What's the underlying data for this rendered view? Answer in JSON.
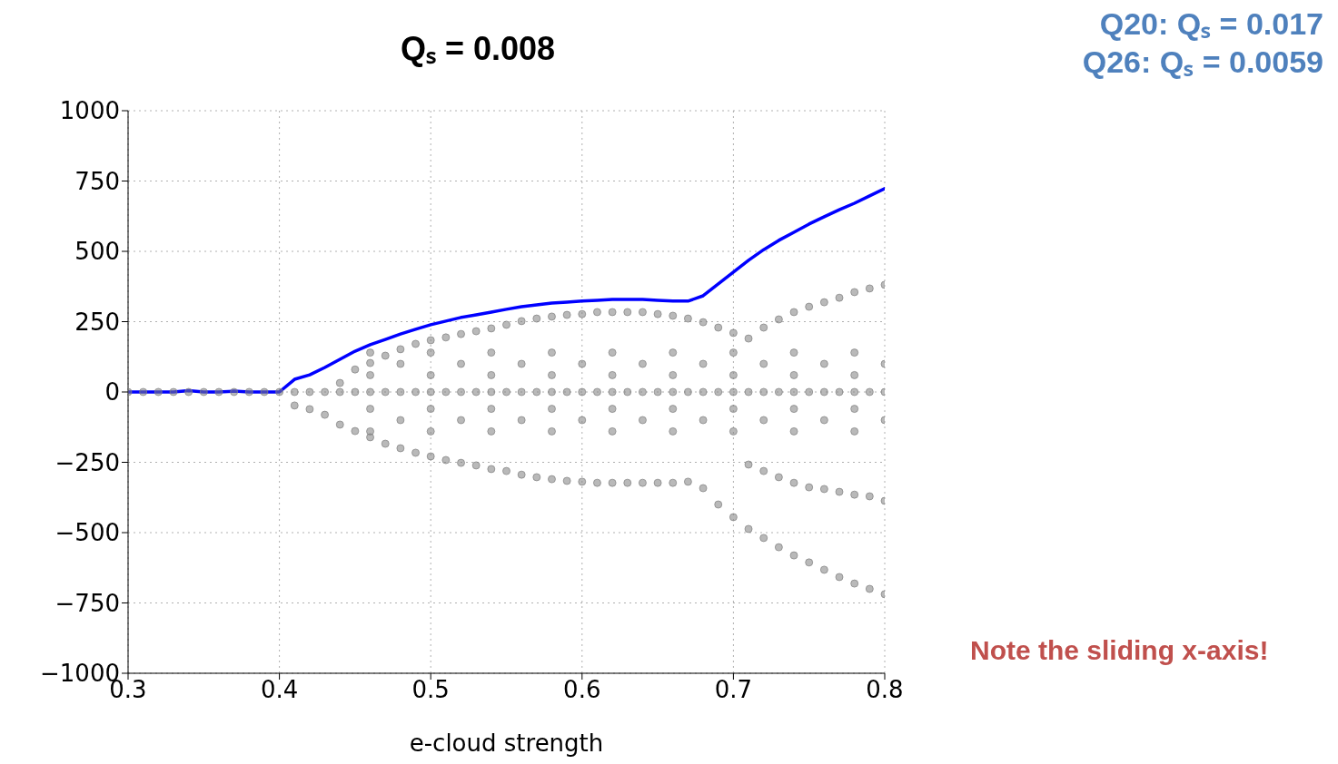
{
  "chart_data": {
    "type": "scatter",
    "title": "Qₛ = 0.008",
    "xlabel": "e-cloud strength",
    "xlim": [
      0.3,
      0.8
    ],
    "xticks": [
      0.3,
      0.4,
      0.5,
      0.6,
      0.7,
      0.8
    ],
    "ylim": [
      -1000,
      1000
    ],
    "yticks": [
      -1000,
      -750,
      -500,
      -250,
      0,
      250,
      500,
      750,
      1000
    ],
    "grid": true,
    "line_style": "dotted",
    "annotations": [
      "Q20: Qₛ = 0.017",
      "Q26: Qₛ = 0.0059",
      "Note the sliding x-axis!"
    ],
    "series": [
      {
        "color": "#808080",
        "marker": "circle",
        "x": [
          0.3,
          0.31,
          0.32,
          0.33,
          0.34,
          0.35,
          0.36,
          0.37,
          0.38,
          0.39,
          0.4,
          0.41,
          0.42,
          0.43,
          0.44,
          0.45,
          0.46,
          0.47,
          0.48,
          0.49,
          0.5,
          0.51,
          0.52,
          0.53,
          0.54,
          0.55,
          0.56,
          0.57,
          0.58,
          0.59,
          0.6,
          0.61,
          0.62,
          0.63,
          0.64,
          0.65,
          0.66,
          0.67,
          0.68,
          0.69,
          0.7,
          0.71,
          0.72,
          0.73,
          0.74,
          0.75,
          0.76,
          0.77,
          0.78,
          0.79,
          0.8,
          0.44,
          0.45,
          0.46,
          0.47,
          0.48,
          0.49,
          0.5,
          0.51,
          0.52,
          0.53,
          0.54,
          0.55,
          0.56,
          0.57,
          0.58,
          0.59,
          0.6,
          0.61,
          0.62,
          0.63,
          0.64,
          0.65,
          0.66,
          0.67,
          0.68,
          0.69,
          0.7,
          0.71,
          0.72,
          0.73,
          0.74,
          0.75,
          0.76,
          0.77,
          0.78,
          0.79,
          0.8,
          0.41,
          0.42,
          0.43,
          0.44,
          0.45,
          0.46,
          0.47,
          0.48,
          0.49,
          0.5,
          0.51,
          0.52,
          0.53,
          0.54,
          0.55,
          0.56,
          0.57,
          0.58,
          0.59,
          0.6,
          0.61,
          0.62,
          0.63,
          0.64,
          0.65,
          0.66,
          0.67,
          0.68,
          0.69,
          0.7,
          0.71,
          0.72,
          0.73,
          0.74,
          0.75,
          0.76,
          0.77,
          0.78,
          0.79,
          0.8,
          0.71,
          0.72,
          0.73,
          0.74,
          0.75,
          0.76,
          0.77,
          0.78,
          0.79,
          0.8,
          0.46,
          0.46,
          0.46,
          0.46,
          0.5,
          0.5,
          0.5,
          0.5,
          0.54,
          0.54,
          0.54,
          0.54,
          0.58,
          0.58,
          0.58,
          0.58,
          0.62,
          0.62,
          0.62,
          0.62,
          0.66,
          0.66,
          0.66,
          0.66,
          0.7,
          0.7,
          0.7,
          0.7,
          0.74,
          0.74,
          0.74,
          0.74,
          0.78,
          0.78,
          0.78,
          0.78,
          0.48,
          0.48,
          0.52,
          0.52,
          0.56,
          0.56,
          0.6,
          0.6,
          0.64,
          0.64,
          0.68,
          0.68,
          0.72,
          0.72,
          0.76,
          0.76,
          0.8,
          0.8
        ],
        "values": [
          0,
          0,
          0,
          0,
          0,
          0,
          0,
          0,
          0,
          0,
          0,
          0,
          0,
          0,
          0,
          0,
          0,
          0,
          0,
          0,
          0,
          0,
          0,
          0,
          0,
          0,
          0,
          0,
          0,
          0,
          0,
          0,
          0,
          0,
          0,
          0,
          0,
          0,
          0,
          0,
          0,
          0,
          0,
          0,
          0,
          0,
          0,
          0,
          0,
          0,
          0,
          32,
          80,
          103,
          129,
          152,
          171,
          184,
          194,
          206,
          216,
          226,
          239,
          252,
          261,
          268,
          274,
          277,
          284,
          284,
          284,
          284,
          277,
          271,
          261,
          248,
          229,
          210,
          190,
          229,
          258,
          284,
          303,
          319,
          335,
          355,
          368,
          381,
          -48,
          -61,
          -81,
          -116,
          -139,
          -161,
          -184,
          -200,
          -216,
          -229,
          -242,
          -252,
          -261,
          -274,
          -281,
          -294,
          -303,
          -310,
          -316,
          -319,
          -323,
          -323,
          -323,
          -323,
          -323,
          -323,
          -319,
          -342,
          -400,
          -445,
          -487,
          -519,
          -552,
          -581,
          -606,
          -632,
          -658,
          -681,
          -700,
          -719,
          -258,
          -281,
          -303,
          -323,
          -339,
          -345,
          -355,
          -365,
          -371,
          -387,
          60,
          -60,
          140,
          -140,
          60,
          -60,
          140,
          -140,
          60,
          -60,
          140,
          -140,
          60,
          -60,
          140,
          -140,
          60,
          -60,
          140,
          -140,
          60,
          -60,
          140,
          -140,
          60,
          -60,
          140,
          -140,
          60,
          -60,
          140,
          -140,
          60,
          -60,
          140,
          -140,
          100,
          -100,
          100,
          -100,
          100,
          -100,
          100,
          -100,
          100,
          -100,
          100,
          -100,
          100,
          -100,
          100,
          -100,
          100,
          -100
        ]
      },
      {
        "type": "line",
        "color": "#0000ff",
        "marker": "none",
        "line_style": "solid",
        "x": [
          0.3,
          0.31,
          0.32,
          0.33,
          0.34,
          0.35,
          0.36,
          0.37,
          0.38,
          0.39,
          0.4,
          0.41,
          0.42,
          0.43,
          0.44,
          0.45,
          0.46,
          0.47,
          0.48,
          0.49,
          0.5,
          0.51,
          0.52,
          0.53,
          0.54,
          0.55,
          0.56,
          0.57,
          0.58,
          0.59,
          0.6,
          0.61,
          0.62,
          0.63,
          0.64,
          0.65,
          0.66,
          0.67,
          0.68,
          0.69,
          0.7,
          0.71,
          0.72,
          0.73,
          0.74,
          0.75,
          0.76,
          0.77,
          0.78,
          0.79,
          0.8
        ],
        "values": [
          0,
          0,
          0,
          0,
          5,
          0,
          0,
          3,
          0,
          0,
          0,
          45,
          61,
          87,
          116,
          145,
          168,
          187,
          206,
          223,
          239,
          252,
          265,
          274,
          284,
          294,
          303,
          310,
          316,
          319,
          323,
          326,
          329,
          329,
          329,
          326,
          323,
          323,
          342,
          384,
          426,
          468,
          506,
          539,
          568,
          597,
          623,
          648,
          671,
          697,
          723
        ]
      }
    ]
  }
}
